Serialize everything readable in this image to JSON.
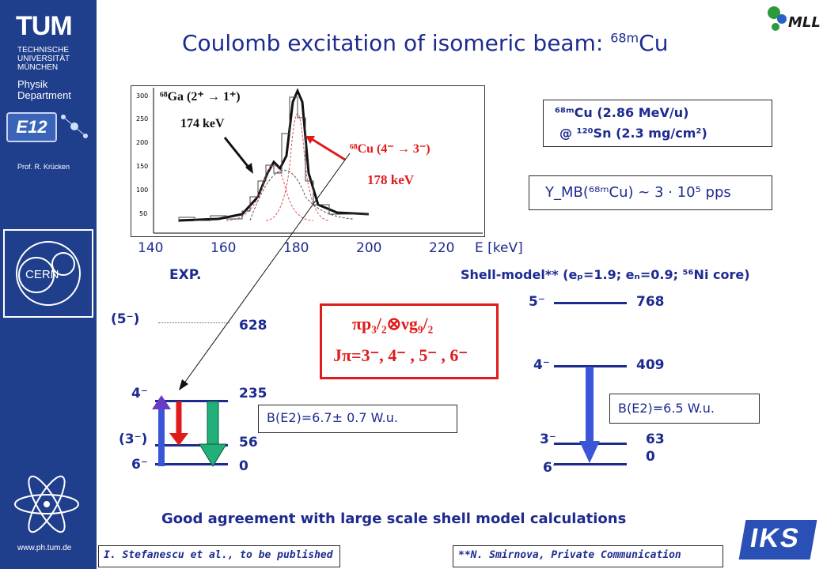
{
  "sidebar": {
    "logo_text": "TUM",
    "university": [
      "TECHNISCHE",
      "UNIVERSITÄT",
      "MÜNCHEN"
    ],
    "dept": [
      "Physik",
      "Department"
    ],
    "group": "E12",
    "prof": "Prof. R. Krücken",
    "cern": "CERN",
    "url": "www.ph.tum.de"
  },
  "header": {
    "title_main": "Coulomb excitation of isomeric beam: ",
    "title_sup": "68m",
    "title_el": "Cu",
    "mll": "MLL"
  },
  "spectrum": {
    "ga_label": "⁶⁸Ga (2⁺ → 1⁺)",
    "ga_energy": "174  keV",
    "cu_label": "⁶⁸Cu (4⁻ → 3⁻)",
    "cu_energy": "178  keV",
    "x_ticks": [
      "140",
      "160",
      "180",
      "200",
      "220"
    ],
    "x_unit": "E [keV]",
    "y_ticks": [
      "300",
      "250",
      "200",
      "150",
      "100",
      "50"
    ]
  },
  "beam_box": {
    "line1": "⁶⁸ᵐCu (2.86 MeV/u)",
    "line2": "@ ¹²⁰Sn (2.3 mg/cm²)"
  },
  "yield_box": {
    "text": "Y_MB(⁶⁸ᵐCu) ~ 3 · 10⁵ pps"
  },
  "exp": {
    "title": "EXP.",
    "levels": [
      {
        "spin": "(5⁻)",
        "energy": "628"
      },
      {
        "spin": "4⁻",
        "energy": "235"
      },
      {
        "spin": "(3⁻)",
        "energy": "56"
      },
      {
        "spin": "6⁻",
        "energy": "0"
      }
    ],
    "be2": "B(E2)=6.7± 0.7 W.u."
  },
  "config_box": {
    "line1": "πp₃/₂⊗νg₉/₂",
    "line2": "Jπ=3⁻, 4⁻ , 5⁻ , 6⁻"
  },
  "shell": {
    "title": "Shell-model** (eₚ=1.9; eₙ=0.9; ⁵⁶Ni core)",
    "levels": [
      {
        "spin": "5⁻",
        "energy": "768"
      },
      {
        "spin": "4⁻",
        "energy": "409"
      },
      {
        "spin": "3⁻",
        "energy": "63"
      },
      {
        "spin": "6⁻",
        "energy": "0"
      }
    ],
    "be2": "B(E2)=6.5 W.u."
  },
  "conclusion": "Good agreement with large scale shell model calculations",
  "footer": {
    "left": "I. Stefanescu et al., to be published",
    "right": "**N. Smirnova, Private Communication",
    "logo": "IKS"
  },
  "colors": {
    "sidebar": "#1f3f8c",
    "text": "#1d2b8f",
    "red": "#e01b1b",
    "green": "#22b07a",
    "blue": "#3a55d8",
    "purple": "#6a3bc8"
  }
}
